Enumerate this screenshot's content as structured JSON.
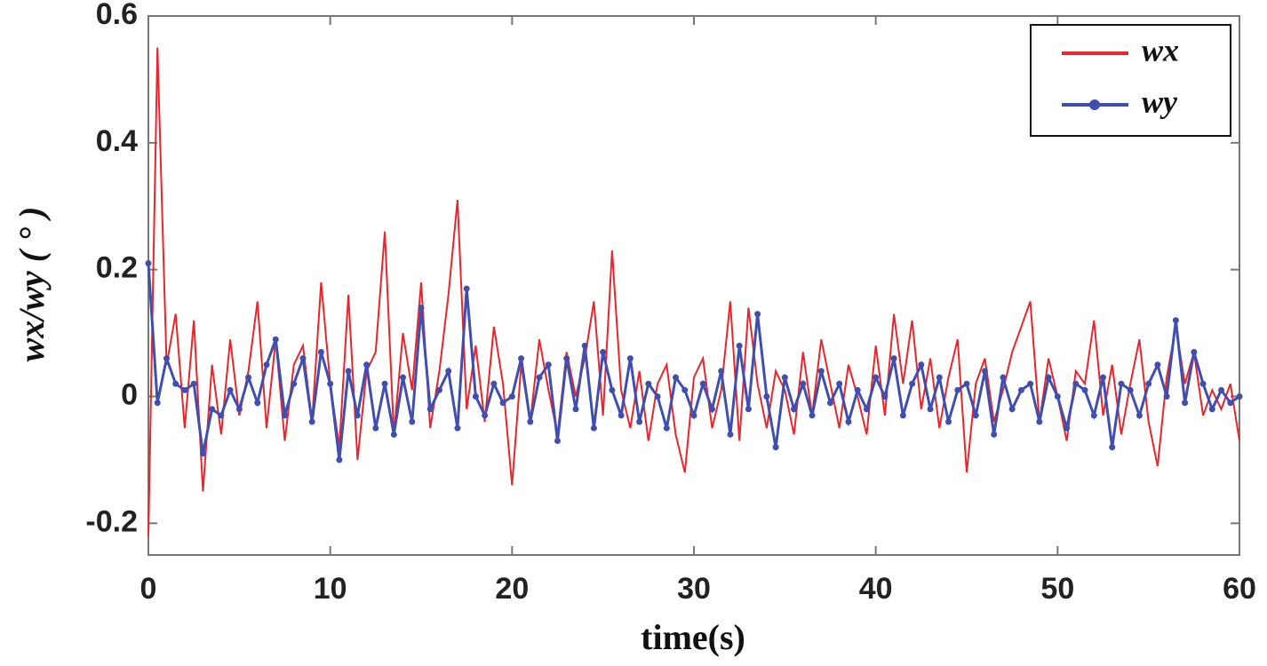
{
  "chart_data": {
    "type": "line",
    "x_label": "time(s)",
    "y_label": "wx/wy ( ° )",
    "x": [
      0,
      0.5,
      1,
      1.5,
      2,
      2.5,
      3,
      3.5,
      4,
      4.5,
      5,
      5.5,
      6,
      6.5,
      7,
      7.5,
      8,
      8.5,
      9,
      9.5,
      10,
      10.5,
      11,
      11.5,
      12,
      12.5,
      13,
      13.5,
      14,
      14.5,
      15,
      15.5,
      16,
      16.5,
      17,
      17.5,
      18,
      18.5,
      19,
      19.5,
      20,
      20.5,
      21,
      21.5,
      22,
      22.5,
      23,
      23.5,
      24,
      24.5,
      25,
      25.5,
      26,
      26.5,
      27,
      27.5,
      28,
      28.5,
      29,
      29.5,
      30,
      30.5,
      31,
      31.5,
      32,
      32.5,
      33,
      33.5,
      34,
      34.5,
      35,
      35.5,
      36,
      36.5,
      37,
      37.5,
      38,
      38.5,
      39,
      39.5,
      40,
      40.5,
      41,
      41.5,
      42,
      42.5,
      43,
      43.5,
      44,
      44.5,
      45,
      45.5,
      46,
      46.5,
      47,
      47.5,
      48,
      48.5,
      49,
      49.5,
      50,
      50.5,
      51,
      51.5,
      52,
      52.5,
      53,
      53.5,
      54,
      54.5,
      55,
      55.5,
      56,
      56.5,
      57,
      57.5,
      58,
      58.5,
      59,
      59.5,
      60
    ],
    "series": [
      {
        "name": "wx",
        "color": "#e8262b",
        "markers": false,
        "values": [
          -0.22,
          0.55,
          0.05,
          0.13,
          -0.05,
          0.12,
          -0.15,
          0.05,
          -0.06,
          0.09,
          -0.03,
          0.04,
          0.15,
          -0.05,
          0.09,
          -0.07,
          0.05,
          0.08,
          -0.04,
          0.18,
          0.02,
          -0.08,
          0.16,
          -0.1,
          0.04,
          0.07,
          0.26,
          -0.06,
          0.1,
          0.01,
          0.18,
          -0.05,
          0.04,
          0.16,
          0.31,
          -0.02,
          0.08,
          -0.04,
          0.11,
          0.02,
          -0.14,
          0.05,
          -0.04,
          0.09,
          0.01,
          -0.06,
          0.07,
          0.0,
          0.06,
          0.15,
          -0.03,
          0.23,
          0.01,
          -0.05,
          0.04,
          -0.07,
          0.02,
          0.05,
          -0.06,
          -0.12,
          0.03,
          0.06,
          -0.05,
          0.01,
          0.15,
          -0.07,
          0.14,
          0.02,
          -0.05,
          0.04,
          0.01,
          -0.06,
          0.07,
          -0.03,
          0.09,
          0.02,
          -0.05,
          0.05,
          0.0,
          -0.06,
          0.08,
          -0.03,
          0.13,
          0.02,
          0.12,
          -0.02,
          0.06,
          -0.05,
          0.03,
          0.09,
          -0.12,
          0.02,
          0.06,
          -0.04,
          0.01,
          0.07,
          0.11,
          0.15,
          -0.04,
          0.06,
          0.0,
          -0.07,
          0.04,
          0.02,
          0.12,
          -0.03,
          0.05,
          -0.06,
          0.02,
          0.09,
          -0.04,
          -0.11,
          0.03,
          0.11,
          0.02,
          0.07,
          -0.03,
          0.01,
          -0.02,
          0.02,
          -0.07
        ]
      },
      {
        "name": "wy",
        "color": "#3f4fb0",
        "markers": true,
        "values": [
          0.21,
          -0.01,
          0.06,
          0.02,
          0.01,
          0.02,
          -0.09,
          -0.02,
          -0.03,
          0.01,
          -0.02,
          0.03,
          -0.01,
          0.05,
          0.09,
          -0.03,
          0.02,
          0.06,
          -0.04,
          0.07,
          0.02,
          -0.1,
          0.04,
          -0.03,
          0.05,
          -0.05,
          0.02,
          -0.06,
          0.03,
          -0.04,
          0.14,
          -0.02,
          0.01,
          0.04,
          -0.05,
          0.17,
          0.0,
          -0.03,
          0.02,
          -0.01,
          0.0,
          0.06,
          -0.04,
          0.03,
          0.05,
          -0.07,
          0.06,
          -0.02,
          0.08,
          -0.05,
          0.07,
          0.01,
          -0.03,
          0.06,
          -0.04,
          0.02,
          0.0,
          -0.05,
          0.03,
          0.01,
          -0.03,
          0.02,
          -0.02,
          0.04,
          -0.06,
          0.08,
          -0.02,
          0.13,
          0.0,
          -0.08,
          0.03,
          -0.02,
          0.02,
          -0.03,
          0.04,
          -0.01,
          0.02,
          -0.04,
          0.01,
          -0.02,
          0.03,
          0.0,
          0.06,
          -0.03,
          0.02,
          0.05,
          -0.02,
          0.03,
          -0.04,
          0.01,
          0.02,
          -0.03,
          0.04,
          -0.06,
          0.03,
          -0.02,
          0.01,
          0.02,
          -0.04,
          0.03,
          0.0,
          -0.05,
          0.02,
          0.01,
          -0.03,
          0.03,
          -0.08,
          0.02,
          0.01,
          -0.03,
          0.02,
          0.05,
          0.0,
          0.12,
          -0.01,
          0.07,
          0.02,
          -0.02,
          0.01,
          -0.01,
          0.0
        ]
      }
    ],
    "xlim": [
      0,
      60
    ],
    "xticks": [
      0,
      10,
      20,
      30,
      40,
      50,
      60
    ],
    "ylim": [
      -0.25,
      0.6
    ],
    "yticks": [
      -0.2,
      0,
      0.2,
      0.4,
      0.6
    ],
    "grid": false,
    "legend": "upper right"
  }
}
